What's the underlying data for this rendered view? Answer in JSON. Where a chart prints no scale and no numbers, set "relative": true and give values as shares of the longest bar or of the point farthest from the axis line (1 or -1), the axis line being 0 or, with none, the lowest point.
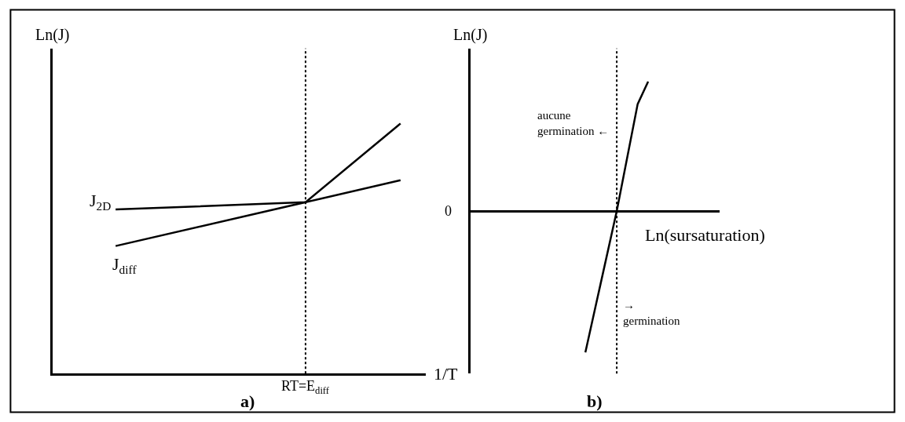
{
  "chart_data": [
    {
      "type": "line",
      "title": "a)",
      "xlabel": "1/T",
      "ylabel": "Ln(J)",
      "relative": true,
      "categories": [
        null,
        null,
        null,
        null,
        null,
        null,
        null,
        null,
        null,
        null,
        null,
        null
      ],
      "series": [
        {
          "name": "J$_{2D}$",
          "color": "#000000",
          "values": [
            null,
            null,
            0.656,
            null,
            null,
            null,
            null,
            null,
            0.685,
            null,
            null,
            0.773
          ]
        },
        {
          "name": "J$_{diff}$",
          "color": "#000000",
          "values": [
            null,
            null,
            0.51,
            null,
            null,
            null,
            null,
            null,
            0.685,
            null,
            null,
            1
          ]
        }
      ],
      "annotations": [
        "RT=E$_{diff}$"
      ],
      "marker": "none",
      "line_style": "solid"
    },
    {
      "type": "line",
      "title": "b)",
      "xlabel": "Ln(sursaturation)",
      "ylabel": "Ln(J)",
      "relative": true,
      "categories": [
        null,
        null,
        null,
        null,
        null,
        null,
        null,
        null,
        null,
        null,
        null,
        null,
        null,
        null,
        null,
        null,
        null,
        null,
        null,
        null,
        null,
        null,
        null,
        null
      ],
      "series": [
        {
          "color": "#000000",
          "values": [
            null,
            null,
            null,
            null,
            null,
            null,
            null,
            null,
            null,
            null,
            null,
            -1,
            null,
            null,
            0,
            null,
            0.757,
            0.916,
            null,
            null,
            null,
            null,
            null,
            null
          ]
        }
      ],
      "annotations": [
        "0",
        "aucune\ngermination ←",
        "→\ngermination"
      ],
      "marker": "none",
      "line_style": "solid"
    }
  ]
}
